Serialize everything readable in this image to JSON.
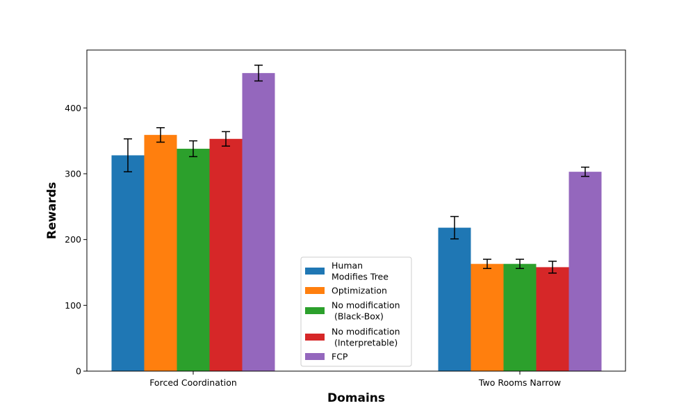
{
  "chart_data": {
    "type": "bar",
    "title": "",
    "xlabel": "Domains",
    "ylabel": "Rewards",
    "ylim": [
      0,
      488
    ],
    "yticks": [
      0,
      100,
      200,
      300,
      400
    ],
    "grid": false,
    "legend_position": "bottom-center",
    "categories": [
      "Forced Coordination",
      "Two Rooms Narrow"
    ],
    "series": [
      {
        "name": "Human\nModifies Tree",
        "color": "#1f77b4",
        "values": [
          328,
          218
        ],
        "errors": [
          25,
          17
        ]
      },
      {
        "name": "Optimization",
        "color": "#ff7f0e",
        "values": [
          359,
          163
        ],
        "errors": [
          11,
          7
        ]
      },
      {
        "name": "No modification\n (Black-Box)",
        "color": "#2ca02c",
        "values": [
          338,
          163
        ],
        "errors": [
          12,
          7
        ]
      },
      {
        "name": "No modification\n (Interpretable)",
        "color": "#d62728",
        "values": [
          353,
          158
        ],
        "errors": [
          11,
          9
        ]
      },
      {
        "name": "FCP",
        "color": "#9467bd",
        "values": [
          453,
          303
        ],
        "errors": [
          12,
          7
        ]
      }
    ]
  }
}
